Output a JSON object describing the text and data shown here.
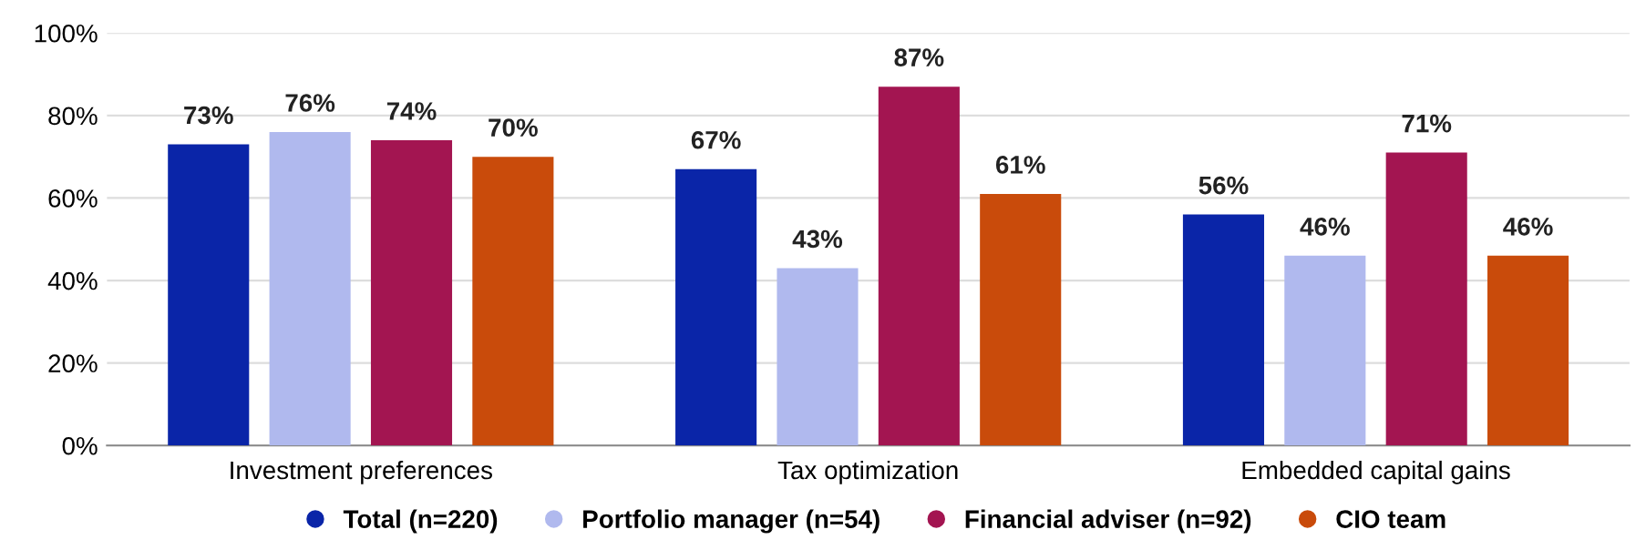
{
  "chart_data": {
    "type": "bar",
    "categories": [
      "Investment preferences",
      "Tax optimization",
      "Embedded capital gains"
    ],
    "series": [
      {
        "name": "Total (n=220)",
        "color": "#0a25a8",
        "values": [
          73,
          67,
          56
        ],
        "value_labels": [
          "73%",
          "67%",
          "56%"
        ]
      },
      {
        "name": "Portfolio manager (n=54)",
        "color": "#b0b9ee",
        "values": [
          76,
          43,
          46
        ],
        "value_labels": [
          "76%",
          "43%",
          "46%"
        ]
      },
      {
        "name": "Financial adviser (n=92)",
        "color": "#a31551",
        "values": [
          74,
          87,
          71
        ],
        "value_labels": [
          "74%",
          "87%",
          "71%"
        ]
      },
      {
        "name": "CIO team",
        "color": "#c94b0b",
        "values": [
          70,
          61,
          46
        ],
        "value_labels": [
          "70%",
          "61%",
          "46%"
        ]
      }
    ],
    "ylim": [
      0,
      100
    ],
    "yticks": [
      {
        "value": 0,
        "label": "0%"
      },
      {
        "value": 20,
        "label": "20%"
      },
      {
        "value": 40,
        "label": "40%"
      },
      {
        "value": 60,
        "label": "60%"
      },
      {
        "value": 80,
        "label": "80%"
      },
      {
        "value": 100,
        "label": "100%"
      }
    ],
    "grid": "y",
    "legend": "bottom"
  }
}
